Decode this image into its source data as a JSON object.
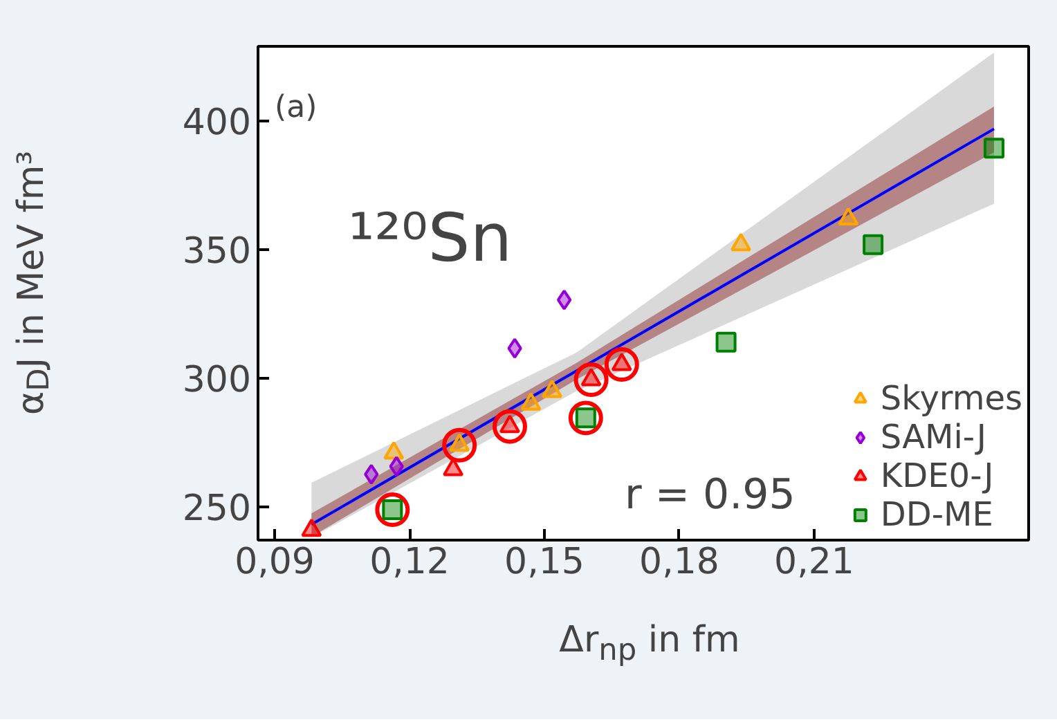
{
  "chart_data": {
    "type": "scatter",
    "xlabel": "Δr$_{np}$ in fm",
    "ylabel": "α$_{D}$J in MeV fm³",
    "annotations": [
      "(a)",
      "¹²⁰Sn",
      "r = 0.95"
    ],
    "xlim": [
      0.0863,
      0.2577
    ],
    "ylim": [
      237,
      429
    ],
    "xticks": [
      {
        "value": 0.09,
        "label": "0,09"
      },
      {
        "value": 0.12,
        "label": "0,12"
      },
      {
        "value": 0.15,
        "label": "0,15"
      },
      {
        "value": 0.18,
        "label": "0,18"
      },
      {
        "value": 0.21,
        "label": "0,21"
      }
    ],
    "yticks": [
      250,
      300,
      350,
      400
    ],
    "grid": false,
    "legend": "bottom right",
    "series": [
      {
        "type": "line",
        "x": [
          0.0982,
          0.1572,
          0.25
        ],
        "values": [
          null,
          null,
          null
        ],
        "lower": [
          238,
          295,
          367.8
        ],
        "upper": [
          259.3,
          310,
          426.6
        ]
      },
      {
        "type": "line",
        "color": "#0000ff",
        "x": [
          0.0982,
          0.1572,
          0.25
        ],
        "values": [
          243.1,
          302.9,
          396.9
        ],
        "lower": [
          238.3,
          299.5,
          387.8
        ],
        "upper": [
          247.4,
          306,
          405.6
        ]
      },
      {
        "marker": "circle",
        "color": "#ff0000",
        "x": [
          0.1162,
          0.1311,
          0.1423,
          0.1592,
          0.1604,
          0.1672
        ],
        "values": [
          248.8,
          273.9,
          281.2,
          284.5,
          299.4,
          305.3
        ]
      },
      {
        "name": "Skyrmes",
        "marker": "triangle",
        "color": "#ffa500",
        "x": [
          0.1165,
          0.1311,
          0.147,
          0.1517,
          0.1937,
          0.2176
        ],
        "values": [
          270.9,
          273.9,
          289.9,
          294.8,
          351.9,
          361.9
        ]
      },
      {
        "name": "SAMi-J",
        "marker": "diamond",
        "color": "#9400d3",
        "x": [
          0.1115,
          0.1171,
          0.1434,
          0.1544
        ],
        "values": [
          262.6,
          265.7,
          311.6,
          330.4
        ]
      },
      {
        "name": "KDE0-J",
        "marker": "triangle",
        "color": "#ff0000",
        "x": [
          0.0982,
          0.1297,
          0.1423,
          0.1604,
          0.1672
        ],
        "values": [
          240.8,
          264.4,
          281.2,
          299.4,
          305.3
        ]
      },
      {
        "name": "DD-ME",
        "marker": "square",
        "color": "#008000",
        "x": [
          0.1162,
          0.1592,
          0.1904,
          0.2231,
          0.25
        ],
        "values": [
          248.8,
          284.5,
          314.0,
          351.9,
          389.4
        ]
      }
    ]
  }
}
